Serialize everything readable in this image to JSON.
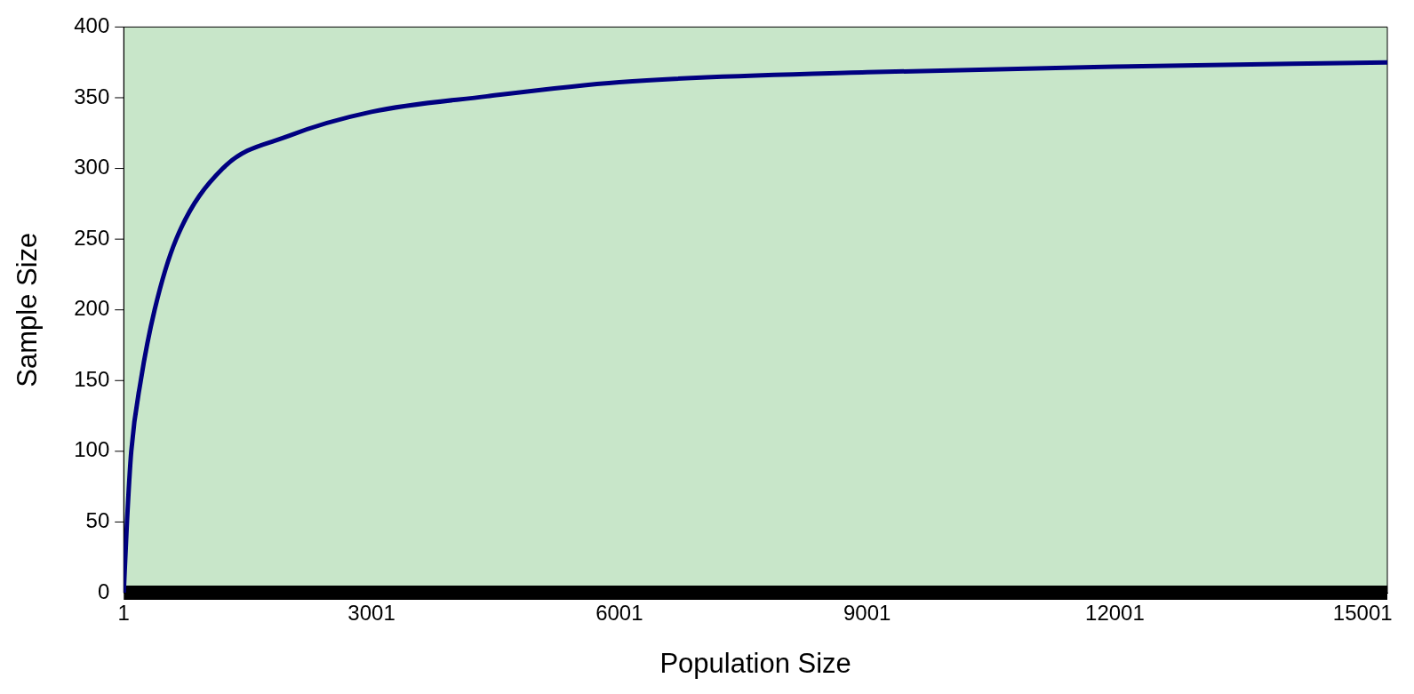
{
  "chart_data": {
    "type": "line",
    "xlabel": "Population Size",
    "ylabel": "Sample Size",
    "xlim": [
      1,
      15300
    ],
    "xticks": [
      1,
      3001,
      6001,
      9001,
      12001,
      15001
    ],
    "ylim": [
      0,
      400
    ],
    "yticks": [
      0,
      50,
      100,
      150,
      200,
      250,
      300,
      350,
      400
    ],
    "ref_lines": [
      {
        "axis": "y",
        "value": 0,
        "color": "#000000"
      }
    ],
    "grid": false,
    "legend": false,
    "marker": "none",
    "line_style": "solid",
    "series": [
      {
        "color": "#000080",
        "x": [
          1,
          40,
          92,
          207,
          375,
          636,
          1200,
          2000,
          3000,
          4400,
          6000,
          9000,
          12000,
          15300
        ],
        "values": [
          0,
          50,
          100,
          150,
          200,
          250,
          300,
          323,
          340,
          351,
          361,
          368,
          372,
          375
        ]
      }
    ]
  }
}
